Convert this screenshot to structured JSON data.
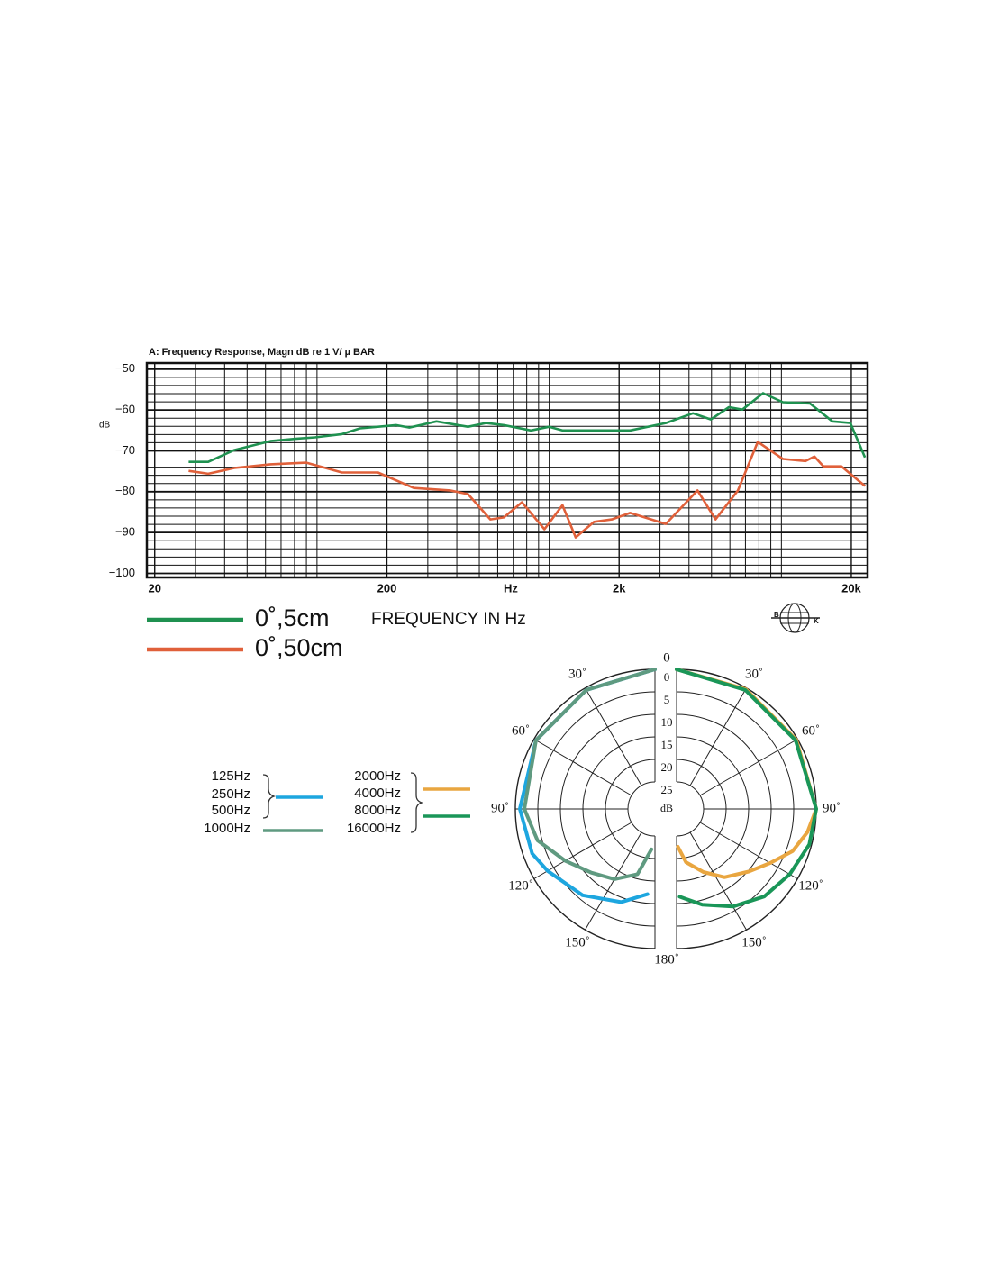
{
  "chart_data": [
    {
      "type": "line",
      "title": "A:  Frequency  Response,  Magn  dB  re      1 V/ µ BAR",
      "y_label": "dB",
      "x_label": "Hz",
      "x_title": "FREQUENCY IN Hz",
      "logo_text": [
        "B",
        "K"
      ],
      "xscale": "log",
      "xlim": [
        18.5,
        23500
      ],
      "xticks": [
        20,
        200,
        {
          "value": 2000,
          "label": "2k"
        },
        {
          "value": 20000,
          "label": "20k"
        }
      ],
      "minor_xticks": [
        30,
        40,
        50,
        60,
        70,
        80,
        90,
        100,
        300,
        400,
        500,
        600,
        700,
        800,
        900,
        1000,
        3000,
        4000,
        5000,
        6000,
        7000,
        8000,
        9000,
        10000
      ],
      "ylim": [
        -101,
        -48.5
      ],
      "yticks": [
        {
          "value": -50,
          "label": "−50"
        },
        {
          "value": -60,
          "label": "−60"
        },
        {
          "value": -70,
          "label": "−70"
        },
        {
          "value": -80,
          "label": "−80"
        },
        {
          "value": -90,
          "label": "−90"
        },
        {
          "value": -100,
          "label": "−100"
        }
      ],
      "minor_yticks": [
        -98,
        -96,
        -94,
        -92,
        -88,
        -86,
        -84,
        -82,
        -78,
        -76,
        -74,
        -72,
        -68,
        -66,
        -64,
        -62,
        -58,
        -56,
        -54,
        -52
      ],
      "grid": true,
      "series": [
        {
          "name": "0˚,5cm",
          "color": "#1f9150",
          "x": [
            28,
            34,
            44,
            63,
            82,
            98,
            128,
            153,
            219,
            250,
            327,
            447,
            534,
            638,
            834,
            1000,
            1140,
            2230,
            3180,
            4160,
            4970,
            5940,
            6790,
            8340,
            10150,
            13270,
            16590,
            19820,
            22900
          ],
          "values": [
            -72.7,
            -72.7,
            -69.8,
            -67.6,
            -67.0,
            -66.7,
            -65.9,
            -64.5,
            -63.7,
            -64.3,
            -62.8,
            -64.1,
            -63.2,
            -63.7,
            -65.0,
            -64.1,
            -65.0,
            -65.0,
            -63.2,
            -60.8,
            -62.3,
            -59.3,
            -59.9,
            -55.9,
            -58.1,
            -58.4,
            -62.8,
            -63.2,
            -71.6
          ]
        },
        {
          "name": "0˚,50cm",
          "color": "#e0603a",
          "x": [
            28,
            34,
            44,
            63,
            90,
            128,
            183,
            261,
            374,
            447,
            558,
            638,
            763,
            954,
            1140,
            1300,
            1560,
            1860,
            2230,
            3180,
            4350,
            5200,
            6500,
            7910,
            10150,
            12690,
            13870,
            15170,
            18140,
            22900
          ],
          "values": [
            -74.9,
            -75.6,
            -74.2,
            -73.3,
            -72.9,
            -75.3,
            -75.3,
            -79.1,
            -79.7,
            -80.6,
            -86.8,
            -86.3,
            -82.6,
            -89.2,
            -83.3,
            -91.2,
            -87.4,
            -86.8,
            -85.2,
            -87.9,
            -79.7,
            -86.8,
            -79.7,
            -67.8,
            -72.0,
            -72.5,
            -71.4,
            -73.8,
            -73.8,
            -78.6
          ]
        }
      ]
    },
    {
      "type": "polar",
      "r_label": "dB",
      "rlim": [
        0,
        25
      ],
      "r_reversed": true,
      "rticks": [
        0,
        5,
        10,
        15,
        20,
        25
      ],
      "thetaticks": [
        0,
        {
          "value": 30,
          "label": "30˚"
        },
        {
          "value": 60,
          "label": "60˚"
        },
        {
          "value": 90,
          "label": "90˚"
        },
        {
          "value": 120,
          "label": "120˚"
        },
        {
          "value": 150,
          "label": "150˚"
        },
        {
          "value": 180,
          "label": "180˚"
        }
      ],
      "series": [
        {
          "labels": [
            "125Hz",
            "250Hz",
            "500Hz"
          ],
          "color": "#1da6df",
          "side": "left",
          "theta": [
            0,
            30,
            60,
            90,
            110,
            120,
            140,
            160,
            175
          ],
          "values": [
            0,
            0.5,
            0.5,
            1,
            2,
            3.5,
            6,
            9,
            12
          ]
        },
        {
          "labels": [
            "1000Hz"
          ],
          "color": "#5f9a80",
          "side": "left",
          "theta": [
            0,
            30,
            60,
            90,
            105,
            120,
            135,
            150,
            165,
            175
          ],
          "values": [
            0,
            0.5,
            0.5,
            2,
            4,
            8,
            11,
            13,
            16,
            22
          ]
        },
        {
          "labels": [
            "2000Hz",
            "4000Hz"
          ],
          "color": "#e9a640",
          "side": "right",
          "theta": [
            0,
            30,
            60,
            90,
            100,
            110,
            120,
            131,
            145,
            157,
            170,
            178
          ],
          "values": [
            0,
            0.3,
            0.3,
            0,
            1.5,
            3.6,
            7,
            9.8,
            12.5,
            15.8,
            19,
            22.6
          ]
        },
        {
          "labels": [
            "8000Hz",
            "16000Hz"
          ],
          "color": "#1a9658",
          "side": "right",
          "theta": [
            0,
            30,
            60,
            90,
            105,
            120,
            135,
            150,
            165,
            178
          ],
          "values": [
            0,
            0.5,
            0.5,
            0,
            0.5,
            2,
            3.5,
            6,
            9,
            11.5
          ]
        }
      ]
    }
  ]
}
